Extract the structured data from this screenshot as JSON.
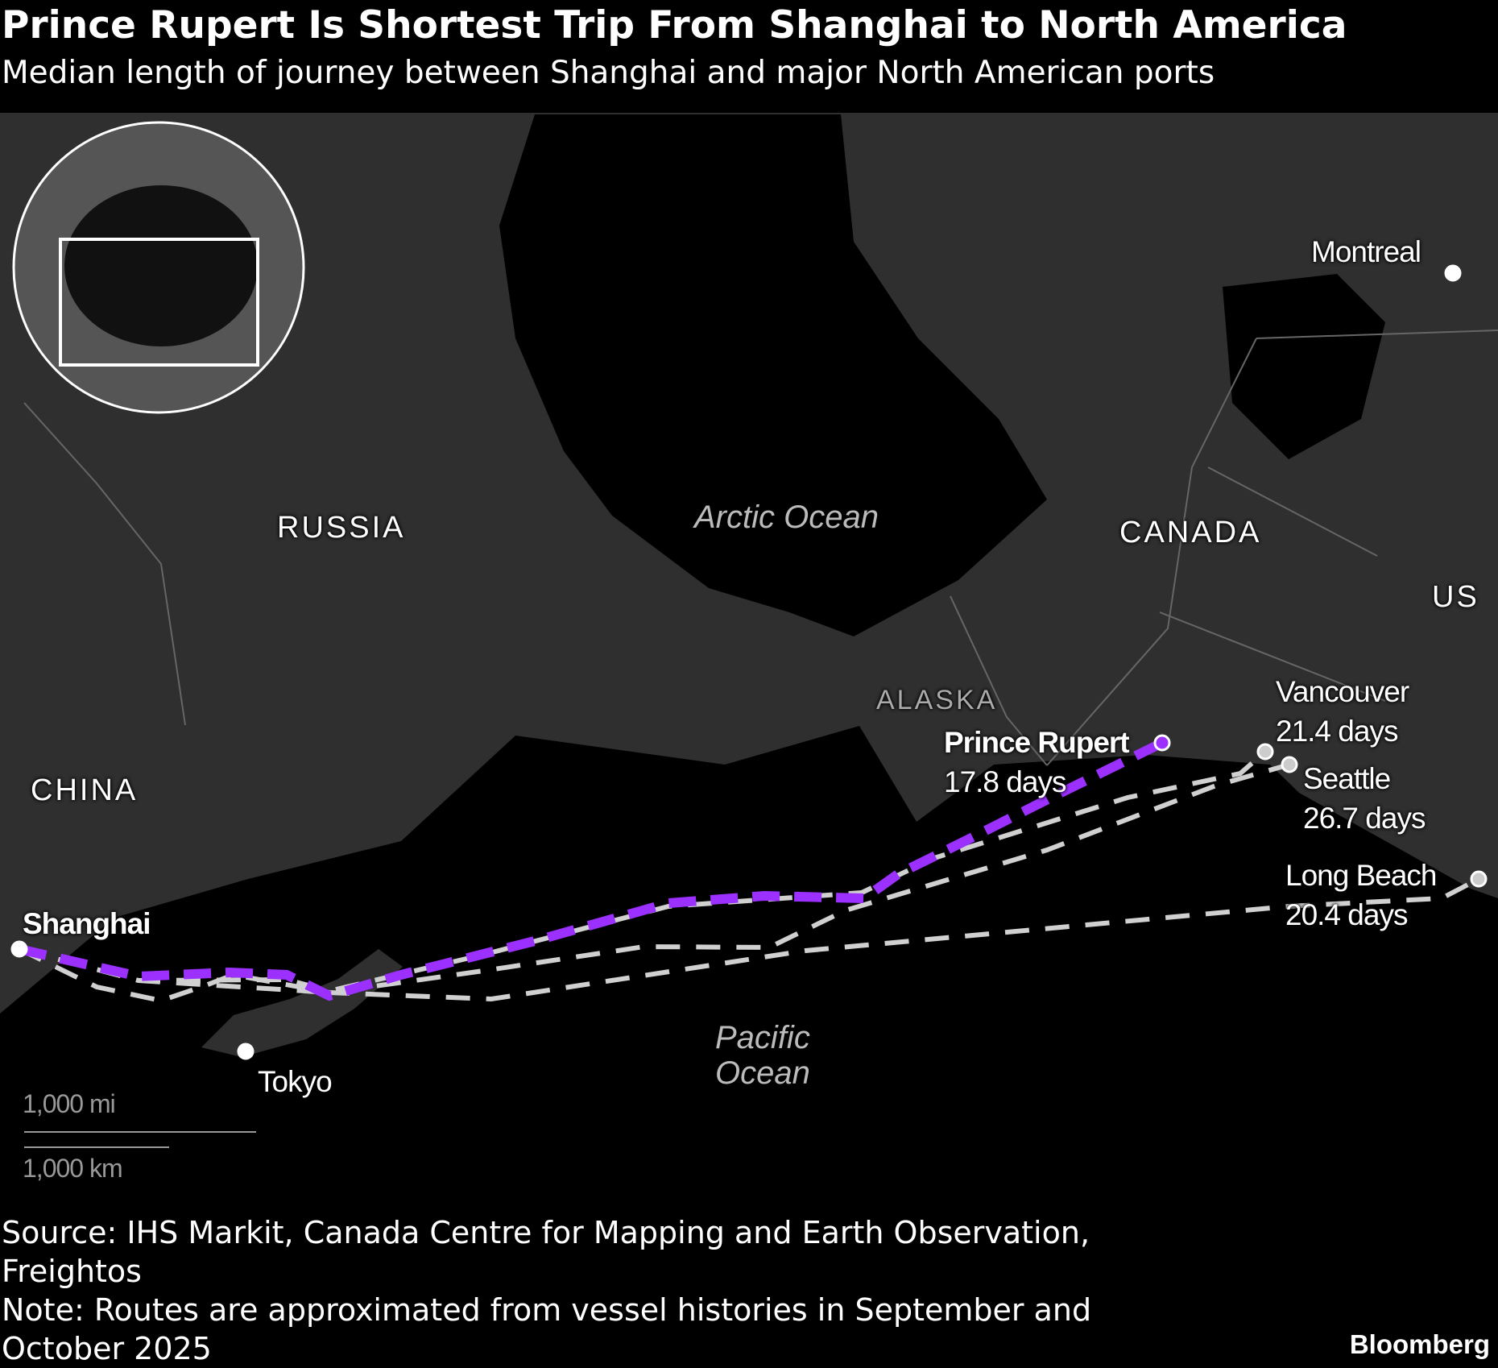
{
  "header": {
    "title": "Prince Rupert Is Shortest Trip From Shanghai to North America",
    "subtitle": "Median length of journey between Shanghai and major North American ports"
  },
  "map": {
    "regions": {
      "russia": "RUSSIA",
      "china": "CHINA",
      "canada": "CANADA",
      "us": "US",
      "alaska": "ALASKA"
    },
    "oceans": {
      "arctic": "Arctic Ocean",
      "pacific_line1": "Pacific",
      "pacific_line2": "Ocean"
    },
    "origin": {
      "name": "Shanghai"
    },
    "cities": {
      "tokyo": "Tokyo",
      "montreal": "Montreal"
    },
    "ports": [
      {
        "name": "Prince Rupert",
        "days": "17.8 days",
        "highlighted": true
      },
      {
        "name": "Vancouver",
        "days": "21.4 days"
      },
      {
        "name": "Seattle",
        "days": "26.7 days"
      },
      {
        "name": "Long Beach",
        "days": "20.4 days"
      }
    ],
    "scale": {
      "miles": "1,000 mi",
      "km": "1,000 km"
    },
    "colors": {
      "highlight_route": "#9b30ff",
      "other_routes": "#d0d0d0",
      "land": "#2f2f2f",
      "water": "#000000"
    }
  },
  "footer": {
    "source": "Source: IHS Markit, Canada Centre for Mapping and Earth Observation, Freightos",
    "note": "Note: Routes are approximated from vessel histories in September and October 2025",
    "brand": "Bloomberg"
  }
}
